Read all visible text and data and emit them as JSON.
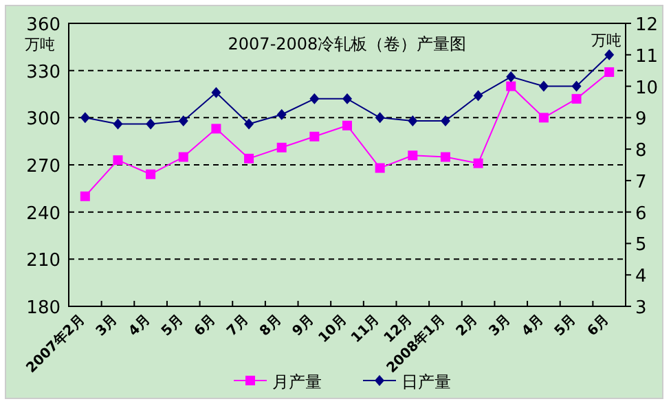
{
  "chart_data": {
    "type": "line",
    "title": "2007-2008冷轧板（卷）产量图",
    "ylabel": "万吨",
    "y2label": "万吨",
    "categories": [
      "2007年2月",
      "3月",
      "4月",
      "5月",
      "6月",
      "7月",
      "8月",
      "9月",
      "10月",
      "11月",
      "12月",
      "2008年1月",
      "2月",
      "3月",
      "4月",
      "5月",
      "6月"
    ],
    "series": [
      {
        "name": "月产量",
        "color": "#ff00ff",
        "marker": "square",
        "values": [
          250,
          273,
          264,
          275,
          293,
          274,
          281,
          288,
          295,
          268,
          276,
          275,
          271,
          320,
          300,
          312,
          329
        ]
      },
      {
        "name": "日产量",
        "color": "#000080",
        "marker": "diamond",
        "axis": "y2",
        "values": [
          9.0,
          8.8,
          8.8,
          8.9,
          9.8,
          8.8,
          9.1,
          9.6,
          9.6,
          9.0,
          8.9,
          8.9,
          9.7,
          10.3,
          10.0,
          10.0,
          11.0
        ]
      }
    ],
    "ylim": [
      180,
      360
    ],
    "yticks": [
      180,
      210,
      240,
      270,
      300,
      330,
      360
    ],
    "y2lim": [
      3,
      12
    ],
    "y2ticks": [
      3,
      4,
      5,
      6,
      7,
      8,
      9,
      10,
      11,
      12
    ],
    "grid": "y",
    "legend": "bottom"
  }
}
